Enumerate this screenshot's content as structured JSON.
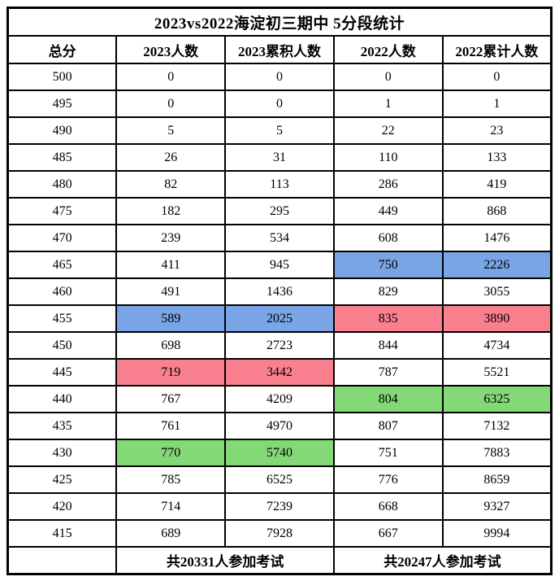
{
  "table": {
    "title": "2023vs2022海淀初三期中 5分段统计",
    "columns": [
      "总分",
      "2023人数",
      "2023累积人数",
      "2022人数",
      "2022累计人数"
    ],
    "rows": [
      {
        "score": "500",
        "values": [
          "0",
          "0",
          "0",
          "0"
        ],
        "colors": [
          "",
          "",
          "",
          ""
        ]
      },
      {
        "score": "495",
        "values": [
          "0",
          "0",
          "1",
          "1"
        ],
        "colors": [
          "",
          "",
          "",
          ""
        ]
      },
      {
        "score": "490",
        "values": [
          "5",
          "5",
          "22",
          "23"
        ],
        "colors": [
          "",
          "",
          "",
          ""
        ]
      },
      {
        "score": "485",
        "values": [
          "26",
          "31",
          "110",
          "133"
        ],
        "colors": [
          "",
          "",
          "",
          ""
        ]
      },
      {
        "score": "480",
        "values": [
          "82",
          "113",
          "286",
          "419"
        ],
        "colors": [
          "",
          "",
          "",
          ""
        ]
      },
      {
        "score": "475",
        "values": [
          "182",
          "295",
          "449",
          "868"
        ],
        "colors": [
          "",
          "",
          "",
          ""
        ]
      },
      {
        "score": "470",
        "values": [
          "239",
          "534",
          "608",
          "1476"
        ],
        "colors": [
          "",
          "",
          "",
          ""
        ]
      },
      {
        "score": "465",
        "values": [
          "411",
          "945",
          "750",
          "2226"
        ],
        "colors": [
          "",
          "",
          "blue",
          "blue"
        ]
      },
      {
        "score": "460",
        "values": [
          "491",
          "1436",
          "829",
          "3055"
        ],
        "colors": [
          "",
          "",
          "",
          ""
        ]
      },
      {
        "score": "455",
        "values": [
          "589",
          "2025",
          "835",
          "3890"
        ],
        "colors": [
          "blue",
          "blue",
          "red",
          "red"
        ]
      },
      {
        "score": "450",
        "values": [
          "698",
          "2723",
          "844",
          "4734"
        ],
        "colors": [
          "",
          "",
          "",
          ""
        ]
      },
      {
        "score": "445",
        "values": [
          "719",
          "3442",
          "787",
          "5521"
        ],
        "colors": [
          "red",
          "red",
          "",
          ""
        ]
      },
      {
        "score": "440",
        "values": [
          "767",
          "4209",
          "804",
          "6325"
        ],
        "colors": [
          "",
          "",
          "green",
          "green"
        ]
      },
      {
        "score": "435",
        "values": [
          "761",
          "4970",
          "807",
          "7132"
        ],
        "colors": [
          "",
          "",
          "",
          ""
        ]
      },
      {
        "score": "430",
        "values": [
          "770",
          "5740",
          "751",
          "7883"
        ],
        "colors": [
          "green",
          "green",
          "",
          ""
        ]
      },
      {
        "score": "425",
        "values": [
          "785",
          "6525",
          "776",
          "8659"
        ],
        "colors": [
          "",
          "",
          "",
          ""
        ]
      },
      {
        "score": "420",
        "values": [
          "714",
          "7239",
          "668",
          "9327"
        ],
        "colors": [
          "",
          "",
          "",
          ""
        ]
      },
      {
        "score": "415",
        "values": [
          "689",
          "7928",
          "667",
          "9994"
        ],
        "colors": [
          "",
          "",
          "",
          ""
        ]
      }
    ],
    "footer": {
      "total_2023": "共20331人参加考试",
      "total_2022": "共20247人参加考试"
    }
  },
  "colors": {
    "blue": "#79A4E6",
    "red": "#F9808F",
    "green": "#84D977"
  }
}
